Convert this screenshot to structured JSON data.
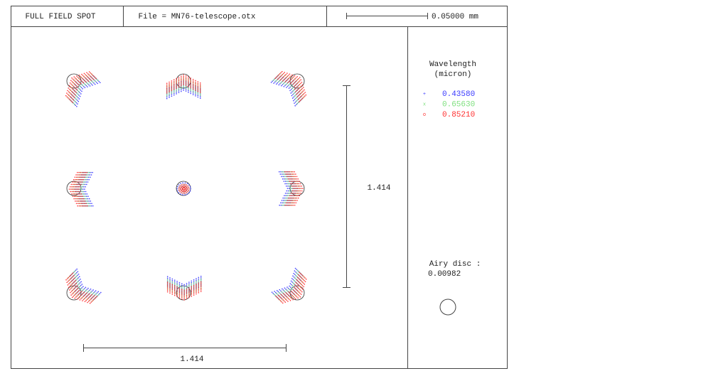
{
  "header": {
    "title": "FULL FIELD SPOT",
    "file": "File = MN76-telescope.otx",
    "scale": "0.05000 mm"
  },
  "scale_bars": {
    "vertical": "1.414",
    "horizontal": "1.414"
  },
  "legend": {
    "title": "Wavelength",
    "unit": "(micron)",
    "entries": [
      {
        "symbol": "+",
        "label": "0.43580",
        "color": "#3a3aff"
      },
      {
        "symbol": "x",
        "label": "0.65630",
        "color": "#7ee07e"
      },
      {
        "symbol": "o",
        "label": "0.85210",
        "color": "#ff3030"
      }
    ]
  },
  "airy_disc": {
    "label": "Airy disc :",
    "value": "0.00982"
  }
}
